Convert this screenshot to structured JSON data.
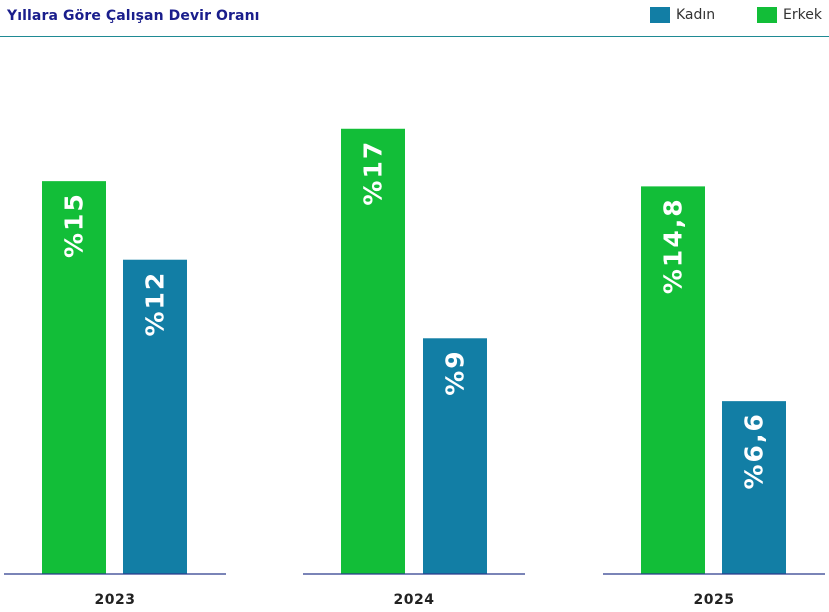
{
  "header": {
    "title": "Yıllara Göre Çalışan Devir Oranı"
  },
  "legend": [
    {
      "label": "Kadın",
      "color": "#127ea5"
    },
    {
      "label": "Erkek",
      "color": "#12be38"
    }
  ],
  "chart_data": {
    "type": "bar",
    "title": "Yıllara Göre Çalışan Devir Oranı",
    "categories": [
      "2023",
      "2024",
      "2025"
    ],
    "series": [
      {
        "name": "Erkek",
        "color": "#12be38",
        "values": [
          15,
          17,
          14.8
        ],
        "labels": [
          "%15",
          "%17",
          "%14,8"
        ]
      },
      {
        "name": "Kadın",
        "color": "#127ea5",
        "values": [
          12,
          9,
          6.6
        ],
        "labels": [
          "%12",
          "%9",
          "%6,6"
        ]
      }
    ],
    "ylim": [
      0,
      18.9
    ],
    "grid": false,
    "legend_position": "top-right"
  }
}
